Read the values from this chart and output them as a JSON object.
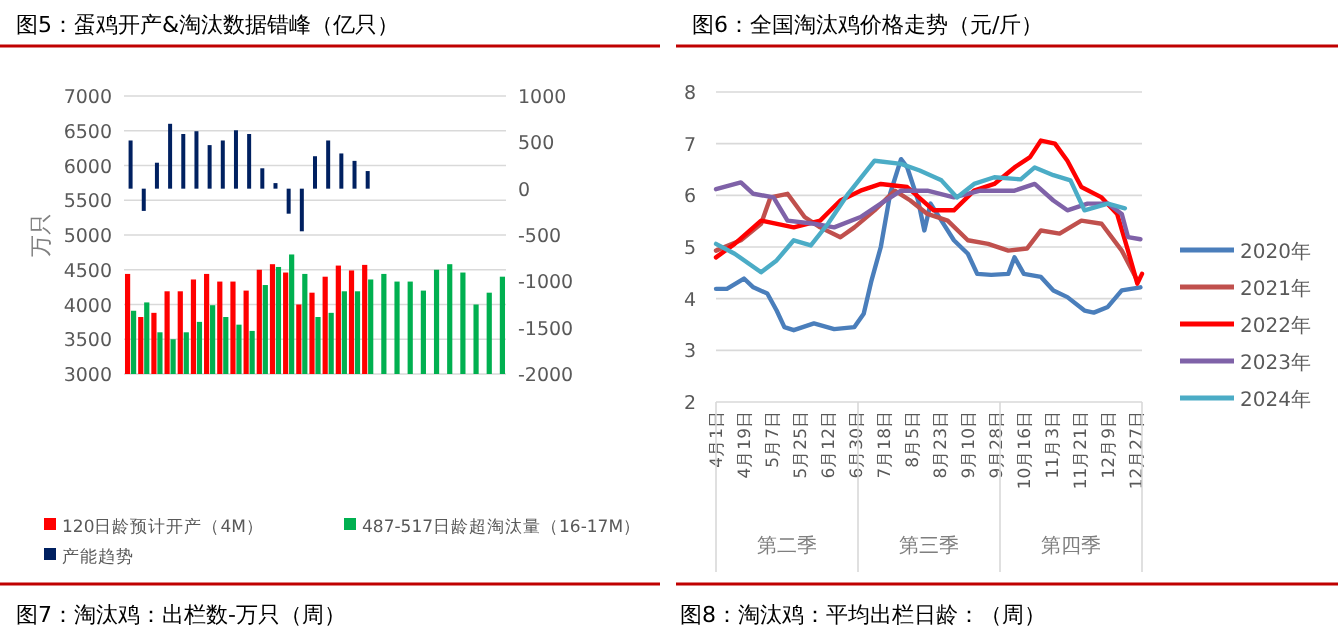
{
  "chart_data": [
    {
      "type": "bar",
      "title": "图5：蛋鸡开产&淘汰数据错峰（亿只）",
      "ylabel": "万只",
      "annotations": [
        "图7：淘汰鸡：出栏数-万只（周）"
      ],
      "categories": [
        null,
        null,
        null,
        null,
        null,
        null,
        null,
        null,
        null,
        null,
        null,
        null,
        null,
        null,
        null,
        null,
        null,
        null,
        null,
        null,
        null,
        null,
        null,
        null,
        null,
        null,
        null,
        null,
        null
      ],
      "series": [
        {
          "name": "120日龄预计开产（4M）",
          "color": "#ff0000",
          "values": [
            4440,
            3820,
            3880,
            4190,
            4190,
            4360,
            4440,
            4330,
            4330,
            4200,
            4500,
            4580,
            4460,
            4000,
            4170,
            4400,
            4560,
            4490,
            4570,
            null,
            null,
            null,
            null,
            null,
            null,
            null,
            null,
            null,
            null
          ]
        },
        {
          "name": "487-517日龄超淘汰量（16-17M）",
          "color": "#00b050",
          "values": [
            3910,
            4030,
            3600,
            3500,
            3600,
            3750,
            3990,
            3820,
            3710,
            3620,
            4280,
            4540,
            4720,
            4440,
            3820,
            3880,
            4190,
            4190,
            4360,
            4440,
            4330,
            4330,
            4200,
            4500,
            4580,
            4460,
            4000,
            4170,
            4400
          ]
        },
        {
          "name": "产能趋势",
          "color": "#002060",
          "axis": "y2",
          "values": [
            520,
            -240,
            280,
            700,
            590,
            620,
            470,
            520,
            630,
            590,
            220,
            60,
            -270,
            -460,
            350,
            520,
            380,
            300,
            190,
            null,
            null,
            null,
            null,
            null,
            null,
            null,
            null,
            null,
            null
          ]
        }
      ],
      "ylim": [
        3000,
        7000
      ],
      "yticks": [
        3000,
        3500,
        4000,
        4500,
        5000,
        5500,
        6000,
        6500,
        7000
      ],
      "y2lim": [
        -2000,
        1000
      ],
      "y2ticks": [
        -2000,
        -1500,
        -1000,
        -500,
        0,
        500,
        1000
      ],
      "grid": "y",
      "legend": "bottom"
    },
    {
      "type": "line",
      "title": "图6：全国淘汰鸡价格走势（元/斤）",
      "annotations": [
        "第二季",
        "第三季",
        "第四季",
        "图8：淘汰鸡：平均出栏日龄：（周）"
      ],
      "xlim": [
        "--04-01",
        "--12-31"
      ],
      "xticks": [
        {
          "value": "--04-01",
          "label": "4月1日"
        },
        {
          "value": "--04-19",
          "label": "4月19日"
        },
        {
          "value": "--05-07",
          "label": "5月7日"
        },
        {
          "value": "--05-25",
          "label": "5月25日"
        },
        {
          "value": "--06-12",
          "label": "6月12日"
        },
        {
          "value": "--06-30",
          "label": "6月30日"
        },
        {
          "value": "--07-18",
          "label": "7月18日"
        },
        {
          "value": "--08-05",
          "label": "8月5日"
        },
        {
          "value": "--08-23",
          "label": "8月23日"
        },
        {
          "value": "--09-10",
          "label": "9月10日"
        },
        {
          "value": "--09-28",
          "label": "9月28日"
        },
        {
          "value": "--10-16",
          "label": "10月16日"
        },
        {
          "value": "--11-03",
          "label": "11月3日"
        },
        {
          "value": "--11-21",
          "label": "11月21日"
        },
        {
          "value": "--12-09",
          "label": "12月9日"
        },
        {
          "value": "--12-27",
          "label": "12月27日"
        }
      ],
      "ylim": [
        2,
        8
      ],
      "yticks": [
        2,
        3,
        4,
        5,
        6,
        7,
        8
      ],
      "grid": "y",
      "legend": "right",
      "series": [
        {
          "name": "2020年",
          "color": "#4a7ebb",
          "x": [
            "--04-01",
            "--04-08",
            "--04-19",
            "--04-25",
            "--05-04",
            "--05-10",
            "--05-15",
            "--05-21",
            "--06-03",
            "--06-16",
            "--06-29",
            "--07-05",
            "--07-10",
            "--07-16",
            "--07-22",
            "--07-29",
            "--08-02",
            "--08-09",
            "--08-13",
            "--08-17",
            "--08-24",
            "--09-01",
            "--09-10",
            "--09-16",
            "--09-25",
            "--10-06",
            "--10-10",
            "--10-16",
            "--10-27",
            "--11-04",
            "--11-13",
            "--11-24",
            "--11-30",
            "--12-09",
            "--12-18",
            "--12-30"
          ],
          "values": [
            4.19,
            4.19,
            4.39,
            4.22,
            4.1,
            3.77,
            3.45,
            3.39,
            3.52,
            3.41,
            3.45,
            3.71,
            4.35,
            5.0,
            6.03,
            6.7,
            6.54,
            5.9,
            5.32,
            5.84,
            5.51,
            5.13,
            4.87,
            4.48,
            4.46,
            4.48,
            4.8,
            4.48,
            4.42,
            4.16,
            4.03,
            3.77,
            3.73,
            3.84,
            4.16,
            4.22
          ]
        },
        {
          "name": "2021年",
          "color": "#c0504d",
          "x": [
            "--04-01",
            "--04-17",
            "--04-30",
            "--05-06",
            "--05-17",
            "--05-28",
            "--06-07",
            "--06-20",
            "--06-29",
            "--07-12",
            "--07-25",
            "--08-04",
            "--08-15",
            "--08-28",
            "--09-10",
            "--09-23",
            "--10-06",
            "--10-18",
            "--10-27",
            "--11-08",
            "--11-22",
            "--12-05",
            "--12-18",
            "--12-28"
          ],
          "values": [
            4.93,
            5.13,
            5.45,
            5.96,
            6.03,
            5.58,
            5.38,
            5.19,
            5.38,
            5.71,
            6.09,
            5.9,
            5.64,
            5.51,
            5.13,
            5.06,
            4.93,
            4.97,
            5.32,
            5.26,
            5.51,
            5.45,
            4.93,
            4.35
          ]
        },
        {
          "name": "2022年",
          "color": "#ff0000",
          "x": [
            "--04-01",
            "--04-13",
            "--04-30",
            "--05-21",
            "--06-07",
            "--06-20",
            "--07-03",
            "--07-16",
            "--08-02",
            "--08-19",
            "--09-01",
            "--09-14",
            "--09-27",
            "--10-10",
            "--10-20",
            "--10-27",
            "--11-05",
            "--11-13",
            "--11-22",
            "--12-05",
            "--12-15",
            "--12-22",
            "--12-28",
            "--12-31"
          ],
          "values": [
            4.8,
            5.06,
            5.51,
            5.38,
            5.51,
            5.9,
            6.09,
            6.22,
            6.16,
            5.71,
            5.71,
            6.09,
            6.22,
            6.54,
            6.74,
            7.06,
            7.0,
            6.67,
            6.16,
            5.96,
            5.64,
            4.93,
            4.29,
            4.48
          ]
        },
        {
          "name": "2023年",
          "color": "#7f62a8",
          "x": [
            "--04-01",
            "--04-17",
            "--04-25",
            "--05-08",
            "--05-17",
            "--06-03",
            "--06-16",
            "--07-03",
            "--07-16",
            "--07-29",
            "--08-15",
            "--09-01",
            "--09-18",
            "--10-10",
            "--10-23",
            "--11-04",
            "--11-13",
            "--11-26",
            "--12-09",
            "--12-18",
            "--12-22",
            "--12-30"
          ],
          "values": [
            6.12,
            6.25,
            6.03,
            5.96,
            5.51,
            5.45,
            5.38,
            5.58,
            5.84,
            6.09,
            6.09,
            5.96,
            6.09,
            6.09,
            6.22,
            5.9,
            5.71,
            5.84,
            5.84,
            5.64,
            5.19,
            5.15
          ]
        },
        {
          "name": "2024年",
          "color": "#4bacc6",
          "x": [
            "--04-01",
            "--04-13",
            "--04-30",
            "--05-10",
            "--05-21",
            "--06-01",
            "--06-12",
            "--06-25",
            "--07-12",
            "--07-29",
            "--08-10",
            "--08-24",
            "--09-03",
            "--09-14",
            "--09-27",
            "--10-14",
            "--10-23",
            "--11-04",
            "--11-15",
            "--11-24",
            "--12-09",
            "--12-20"
          ],
          "values": [
            5.06,
            4.87,
            4.51,
            4.74,
            5.13,
            5.03,
            5.45,
            6.03,
            6.67,
            6.61,
            6.48,
            6.29,
            5.96,
            6.22,
            6.35,
            6.31,
            6.54,
            6.39,
            6.29,
            5.71,
            5.84,
            5.75
          ]
        }
      ]
    }
  ]
}
